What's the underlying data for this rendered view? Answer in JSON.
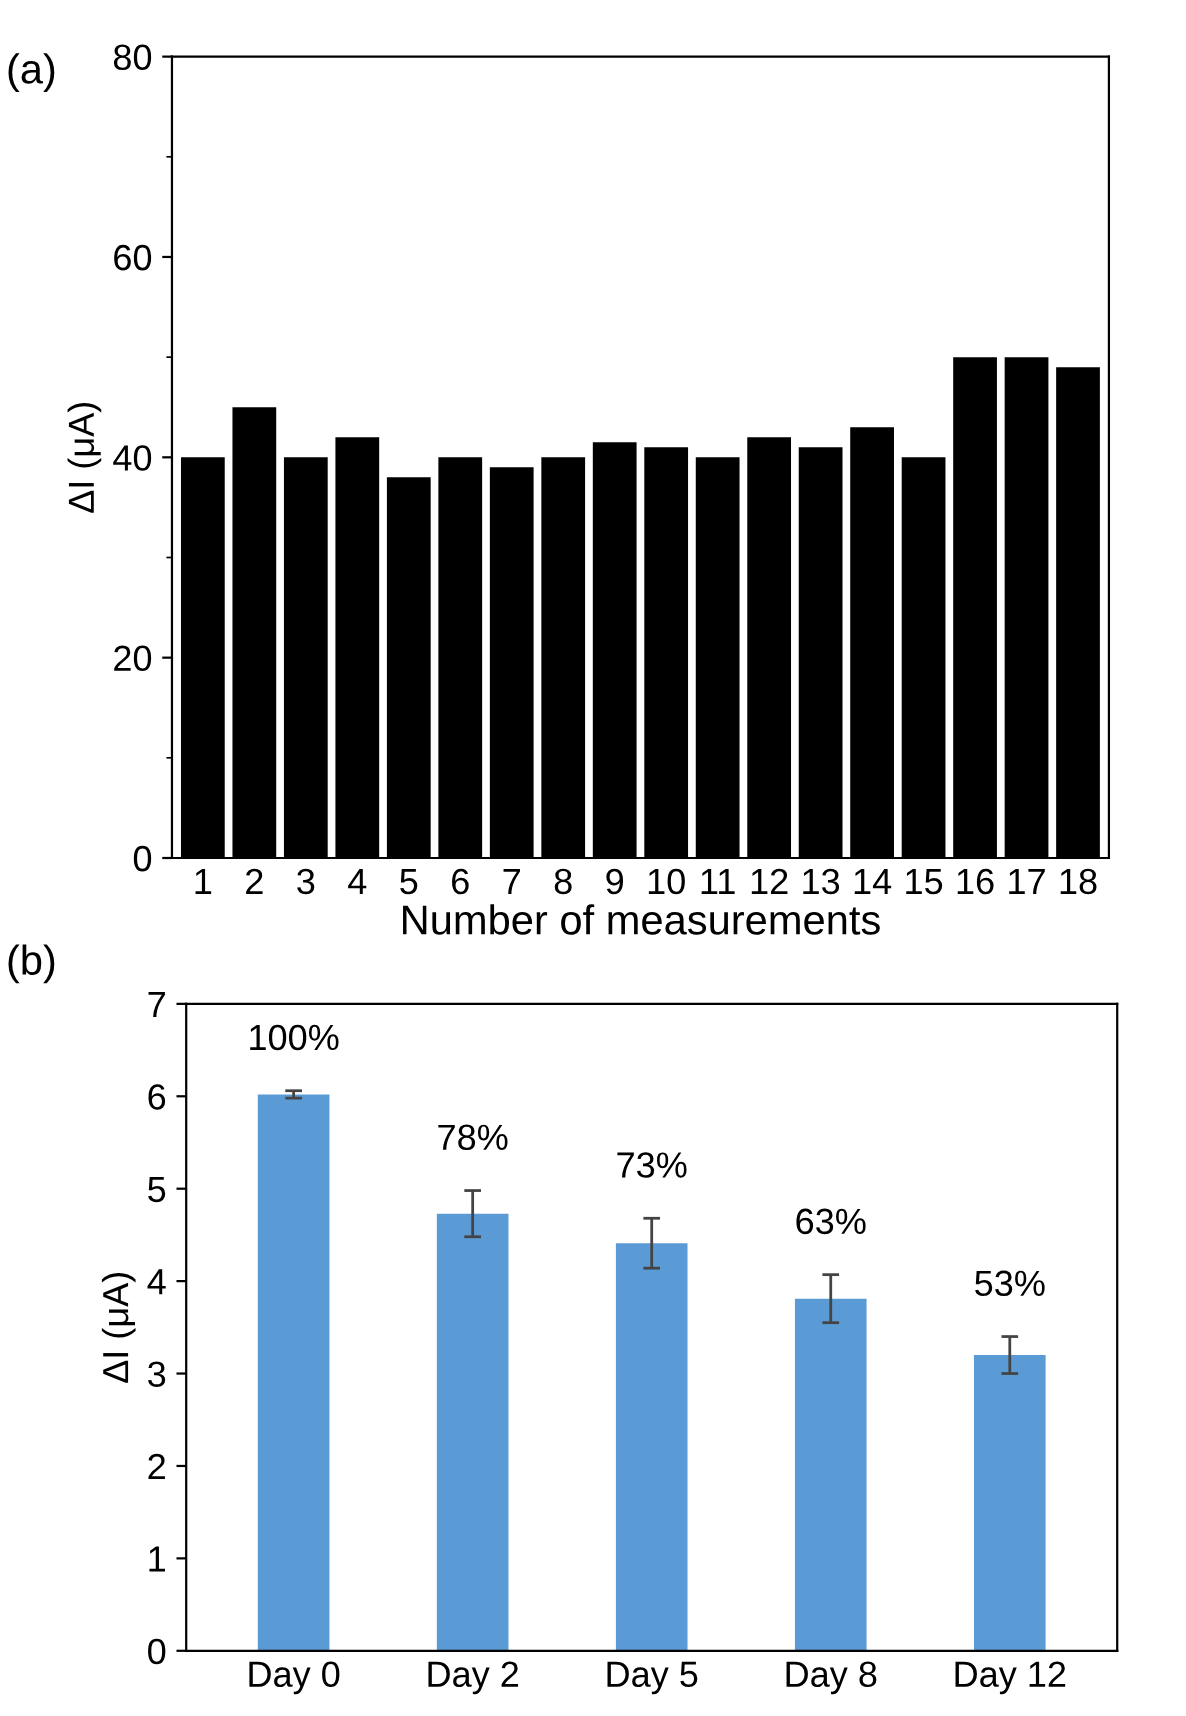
{
  "chart_data": [
    {
      "type": "bar",
      "xlabel": "Number of measurements",
      "ylabel": "ΔI (μA)",
      "annotations": [
        "(a)"
      ],
      "categories": [
        "1",
        "2",
        "3",
        "4",
        "5",
        "6",
        "7",
        "8",
        "9",
        "10",
        "11",
        "12",
        "13",
        "14",
        "15",
        "16",
        "17",
        "18"
      ],
      "values": [
        40,
        45,
        40,
        42,
        38,
        40,
        39,
        40,
        41.5,
        41,
        40,
        42,
        41,
        43,
        40,
        50,
        50,
        49
      ],
      "color": "#000000",
      "ylim": [
        0,
        80
      ],
      "yticks": [
        0,
        20,
        40,
        60,
        80
      ],
      "grid": false
    },
    {
      "type": "bar",
      "ylabel": "ΔI (μA)",
      "annotations": [
        "(b)",
        {
          "text": "100%",
          "x": "Day 0",
          "y": 6.02
        },
        {
          "text": "78%",
          "x": "Day 2",
          "y": 4.73
        },
        {
          "text": "73%",
          "x": "Day 5",
          "y": 4.41
        },
        {
          "text": "63%",
          "x": "Day 8",
          "y": 3.81
        },
        {
          "text": "53%",
          "x": "Day 12",
          "y": 3.2
        }
      ],
      "categories": [
        "Day 0",
        "Day 2",
        "Day 5",
        "Day 8",
        "Day 12"
      ],
      "values": [
        6.02,
        4.73,
        4.41,
        3.81,
        3.2
      ],
      "errors": [
        0.04,
        0.25,
        0.27,
        0.26,
        0.2
      ],
      "color": "#5b9bd5",
      "ylim": [
        0,
        7
      ],
      "yticks": [
        0,
        1,
        2,
        3,
        4,
        5,
        6,
        7
      ],
      "grid": false
    }
  ]
}
